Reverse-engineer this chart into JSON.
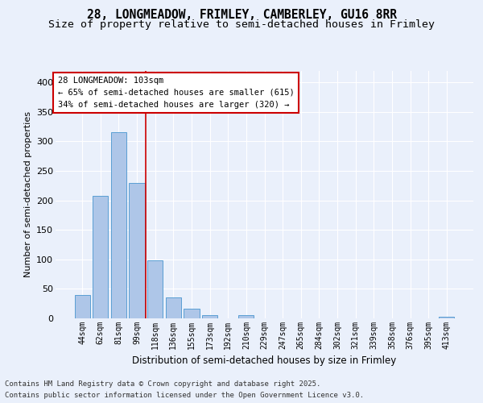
{
  "title_line1": "28, LONGMEADOW, FRIMLEY, CAMBERLEY, GU16 8RR",
  "title_line2": "Size of property relative to semi-detached houses in Frimley",
  "xlabel": "Distribution of semi-detached houses by size in Frimley",
  "ylabel": "Number of semi-detached properties",
  "categories": [
    "44sqm",
    "62sqm",
    "81sqm",
    "99sqm",
    "118sqm",
    "136sqm",
    "155sqm",
    "173sqm",
    "192sqm",
    "210sqm",
    "229sqm",
    "247sqm",
    "265sqm",
    "284sqm",
    "302sqm",
    "321sqm",
    "339sqm",
    "358sqm",
    "376sqm",
    "395sqm",
    "413sqm"
  ],
  "values": [
    40,
    207,
    315,
    230,
    99,
    35,
    17,
    5,
    0,
    5,
    0,
    0,
    0,
    0,
    0,
    0,
    0,
    0,
    0,
    0,
    3
  ],
  "bar_color": "#aec6e8",
  "bar_edge_color": "#5a9fd4",
  "vline_position": 3.5,
  "annotation_text": "28 LONGMEADOW: 103sqm\n← 65% of semi-detached houses are smaller (615)\n34% of semi-detached houses are larger (320) →",
  "footer_line1": "Contains HM Land Registry data © Crown copyright and database right 2025.",
  "footer_line2": "Contains public sector information licensed under the Open Government Licence v3.0.",
  "ylim_max": 420,
  "bg_color": "#eaf0fb",
  "plot_bg_color": "#eaf0fb",
  "grid_color": "#ffffff",
  "vline_color": "#cc0000",
  "box_edge_color": "#cc0000",
  "title_fontsize": 10.5,
  "subtitle_fontsize": 9.5,
  "tick_fontsize": 7,
  "ylabel_fontsize": 8,
  "xlabel_fontsize": 8.5,
  "annotation_fontsize": 7.5,
  "footer_fontsize": 6.5
}
